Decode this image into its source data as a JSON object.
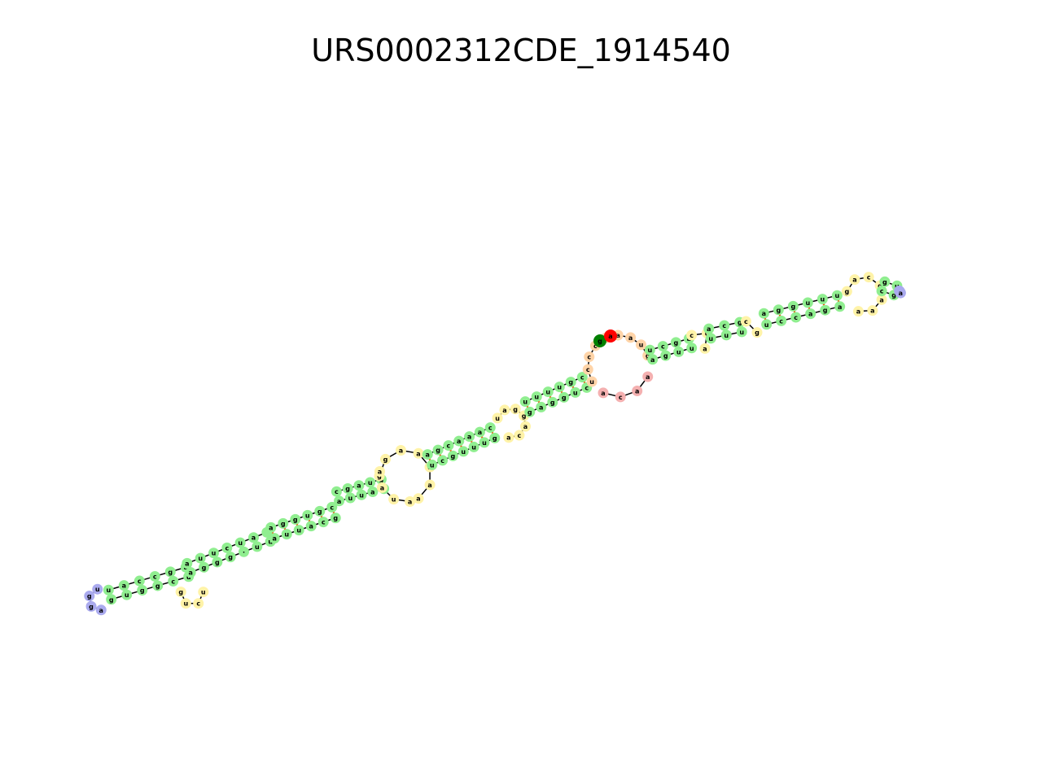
{
  "title": "URS0002312CDE_1914540",
  "colors": {
    "stem": "#90ee90",
    "loop": "#fff3a8",
    "hairpin": "#aaaaee",
    "multiloop": "#ffd4a8",
    "interior": "#f4b0b0",
    "five_prime": "#008000",
    "three_prime": "#ff0000",
    "backbone": "#000000",
    "pair": "#ff4500"
  },
  "legend": []
}
